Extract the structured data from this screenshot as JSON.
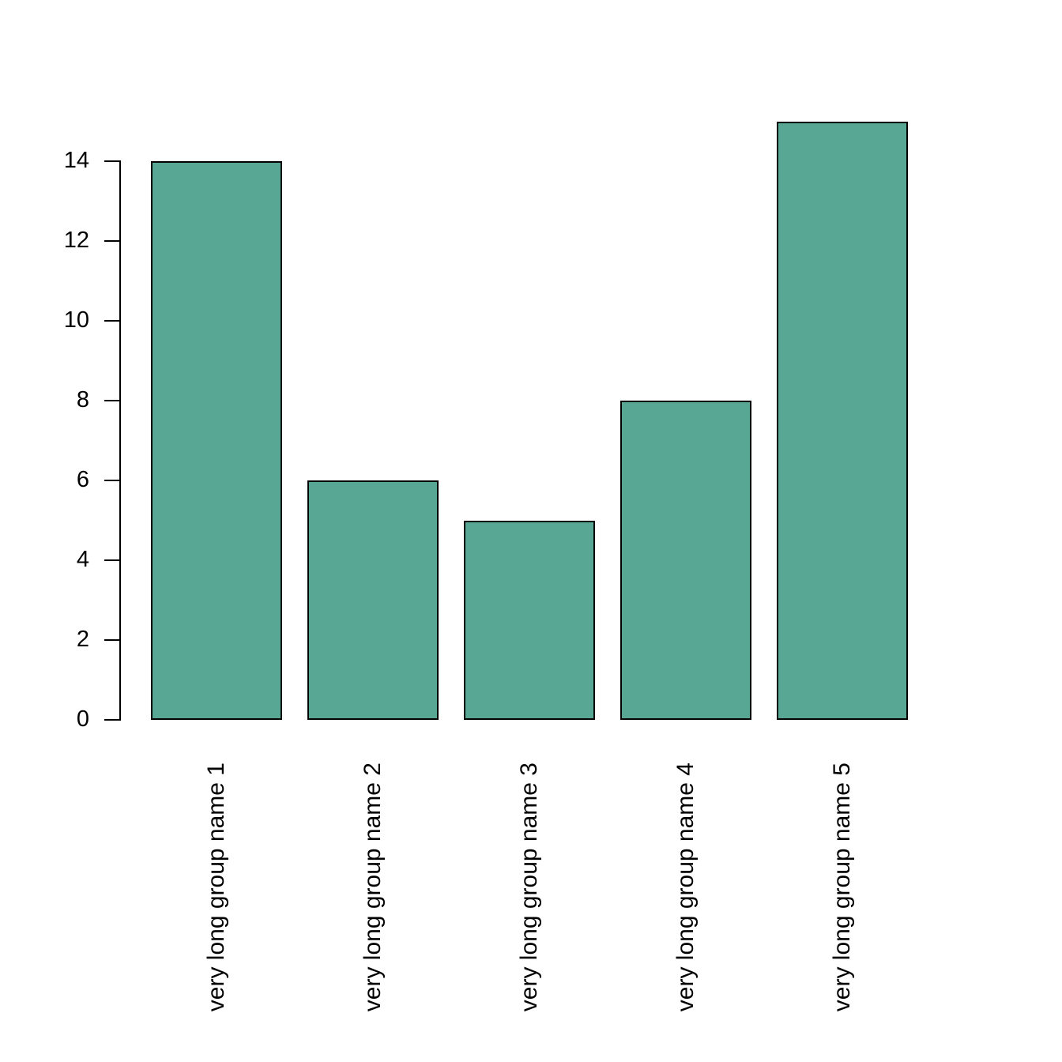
{
  "chart_data": {
    "type": "bar",
    "categories": [
      "very long group name 1",
      "very long group name 2",
      "very long group name 3",
      "very long group name 4",
      "very long group name 5"
    ],
    "values": [
      14,
      6,
      5,
      8,
      15
    ],
    "yticks": [
      0,
      2,
      4,
      6,
      8,
      10,
      12,
      14
    ],
    "title": "",
    "xlabel": "",
    "ylabel": "",
    "ylim": [
      0,
      15
    ],
    "grid": false,
    "legend": null,
    "bar_fill_color": "#57a794",
    "bar_border_color": "#000000",
    "axis_color": "#000000",
    "text_color": "#000000",
    "background_color": "#ffffff"
  }
}
